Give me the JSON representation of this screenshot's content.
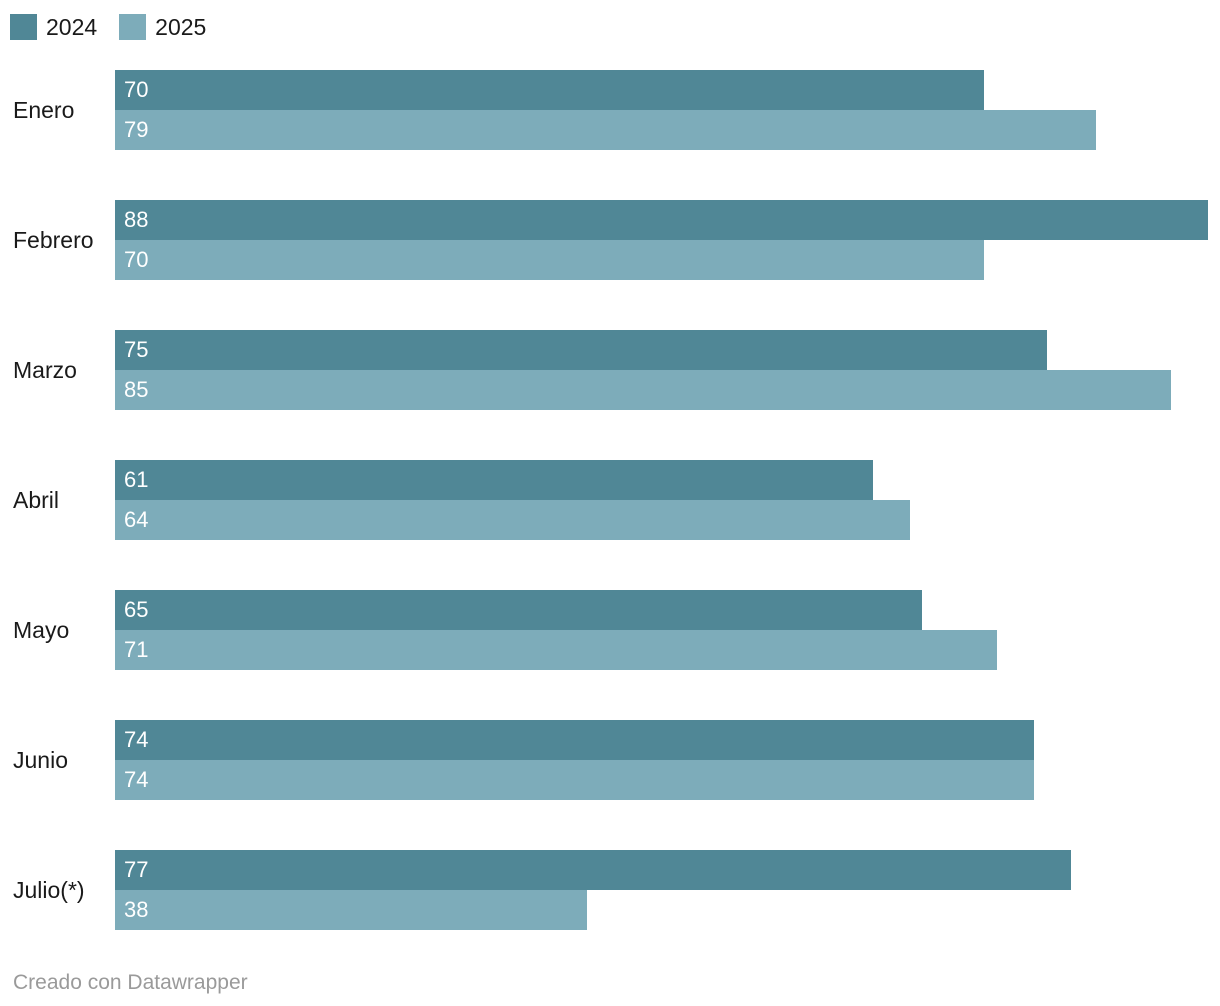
{
  "legend": {
    "items": [
      {
        "label": "2024",
        "color": "#508796"
      },
      {
        "label": "2025",
        "color": "#7DACBA"
      }
    ]
  },
  "footer": {
    "text": "Creado con Datawrapper"
  },
  "chart_data": {
    "type": "bar",
    "orientation": "horizontal",
    "title": "",
    "xlabel": "",
    "ylabel": "",
    "categories": [
      "Enero",
      "Febrero",
      "Marzo",
      "Abril",
      "Mayo",
      "Junio",
      "Julio(*)"
    ],
    "series": [
      {
        "name": "2024",
        "color": "#508796",
        "values": [
          70,
          88,
          75,
          61,
          65,
          74,
          77
        ]
      },
      {
        "name": "2025",
        "color": "#7DACBA",
        "values": [
          79,
          70,
          85,
          64,
          71,
          74,
          38
        ]
      }
    ],
    "xlim": [
      0,
      88
    ],
    "grid": false,
    "axes_visible": false,
    "value_labels": "inside-left-white",
    "legend_position": "top-left"
  }
}
